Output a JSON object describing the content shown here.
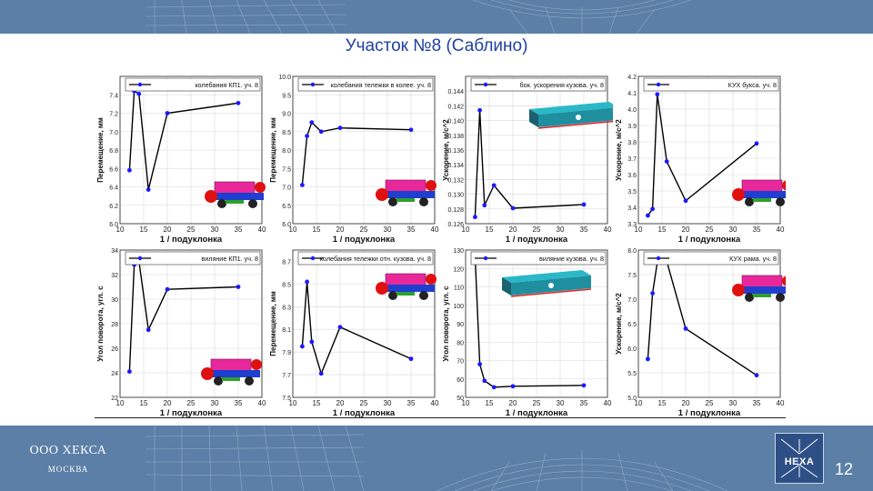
{
  "slide": {
    "title": "Участок №8 (Саблино)",
    "company": "ООО ХЕКСА",
    "city": "МОСКВА",
    "logo_text": "HEXA",
    "page_number": "12"
  },
  "colors": {
    "band": "#5b7fa6",
    "title": "#1f3fa0",
    "series_line": "#000000",
    "series_marker": "#1a1aff"
  },
  "chart_data": [
    {
      "type": "line",
      "xlabel": "1 / подуклонка",
      "ylabel": "Перемещение, мм",
      "xlim": [
        10,
        40
      ],
      "xticks": [
        10,
        15,
        20,
        25,
        30,
        35,
        40
      ],
      "ylim": [
        6.0,
        7.6
      ],
      "yticks": [
        "6.0",
        "6.2",
        "6.4",
        "6.6",
        "6.8",
        "7.0",
        "7.2",
        "7.4"
      ],
      "grid": true,
      "legend": "top-right",
      "illustration": "bogie",
      "series": [
        {
          "name": "колебания КП1. уч. 8",
          "x": [
            12,
            13,
            14,
            16,
            20,
            35
          ],
          "y": [
            6.58,
            7.44,
            7.41,
            6.37,
            7.2,
            7.31
          ]
        }
      ]
    },
    {
      "type": "line",
      "xlabel": "1 / подуклонка",
      "ylabel": "Перемещение, мм",
      "xlim": [
        10,
        40
      ],
      "xticks": [
        10,
        15,
        20,
        25,
        30,
        35,
        40
      ],
      "ylim": [
        6.0,
        10.0
      ],
      "yticks": [
        "6.0",
        "6.5",
        "7.0",
        "7.5",
        "8.0",
        "8.5",
        "9.0",
        "9.5",
        "10.0"
      ],
      "grid": true,
      "legend": "top-right",
      "illustration": "bogie",
      "series": [
        {
          "name": "колебания тележки в колее. уч. 8",
          "x": [
            12,
            13,
            14,
            16,
            20,
            35
          ],
          "y": [
            7.05,
            8.38,
            8.75,
            8.5,
            8.6,
            8.55
          ]
        }
      ]
    },
    {
      "type": "line",
      "xlabel": "1 / подуклонка",
      "ylabel": "Ускорение, м/с^2",
      "xlim": [
        10,
        40
      ],
      "xticks": [
        10,
        15,
        20,
        25,
        30,
        35,
        40
      ],
      "ylim": [
        0.126,
        0.146
      ],
      "yticks": [
        "0.126",
        "0.128",
        "0.130",
        "0.132",
        "0.134",
        "0.136",
        "0.138",
        "0.140",
        "0.142",
        "0.144"
      ],
      "grid": true,
      "legend": "top-right",
      "illustration": "carbody",
      "series": [
        {
          "name": "бок. ускорения кузова. уч. 8",
          "x": [
            12,
            13,
            14,
            16,
            20,
            35
          ],
          "y": [
            0.1269,
            0.1414,
            0.1285,
            0.1312,
            0.1281,
            0.1286
          ]
        }
      ]
    },
    {
      "type": "line",
      "xlabel": "1 / подуклонка",
      "ylabel": "Ускорение, м/с^2",
      "xlim": [
        10,
        40
      ],
      "xticks": [
        10,
        15,
        20,
        25,
        30,
        35,
        40
      ],
      "ylim": [
        3.3,
        4.2
      ],
      "yticks": [
        "3.3",
        "3.4",
        "3.5",
        "3.6",
        "3.7",
        "3.8",
        "3.9",
        "4.0",
        "4.1",
        "4.2"
      ],
      "grid": true,
      "legend": "top-right",
      "illustration": "bogie",
      "series": [
        {
          "name": "КУХ букса. уч. 8",
          "x": [
            12,
            13,
            14,
            16,
            20,
            35
          ],
          "y": [
            3.35,
            3.39,
            4.09,
            3.68,
            3.44,
            3.79
          ]
        }
      ]
    },
    {
      "type": "line",
      "xlabel": "1 / подуклонка",
      "ylabel": "Угол поворота, угл. с",
      "xlim": [
        10,
        40
      ],
      "xticks": [
        10,
        15,
        20,
        25,
        30,
        35,
        40
      ],
      "ylim": [
        22,
        34
      ],
      "yticks": [
        "22",
        "24",
        "26",
        "28",
        "30",
        "32",
        "34"
      ],
      "grid": true,
      "legend": "top-right",
      "illustration": "bogie",
      "series": [
        {
          "name": "виляние КП1. уч. 8",
          "x": [
            12,
            13,
            14,
            16,
            20,
            35
          ],
          "y": [
            24.1,
            32.8,
            33.1,
            27.5,
            30.8,
            31.0
          ]
        }
      ]
    },
    {
      "type": "line",
      "xlabel": "1 / подуклонка",
      "ylabel": "Перемещение, мм",
      "xlim": [
        10,
        40
      ],
      "xticks": [
        10,
        15,
        20,
        25,
        30,
        35,
        40
      ],
      "ylim": [
        7.5,
        8.8
      ],
      "yticks": [
        "7.5",
        "7.7",
        "7.9",
        "8.1",
        "8.3",
        "8.5",
        "8.7"
      ],
      "grid": true,
      "legend": "top-right",
      "illustration": "bogie",
      "series": [
        {
          "name": "колебания тележки отн. кузова. уч. 8",
          "x": [
            12,
            13,
            14,
            16,
            20,
            35
          ],
          "y": [
            7.95,
            8.52,
            7.99,
            7.71,
            8.12,
            7.84
          ]
        }
      ]
    },
    {
      "type": "line",
      "xlabel": "1 / подуклонка",
      "ylabel": "Угол поворота, угл. с",
      "xlim": [
        10,
        40
      ],
      "xticks": [
        10,
        15,
        20,
        25,
        30,
        35,
        40
      ],
      "ylim": [
        50,
        130
      ],
      "yticks": [
        "50",
        "60",
        "70",
        "80",
        "90",
        "100",
        "110",
        "120",
        "130"
      ],
      "grid": true,
      "legend": "top-right",
      "illustration": "carbody",
      "series": [
        {
          "name": "виляние кузова. уч. 8",
          "x": [
            12,
            13,
            14,
            16,
            20,
            35
          ],
          "y": [
            127,
            68,
            59,
            55.5,
            56,
            56.5
          ]
        }
      ]
    },
    {
      "type": "line",
      "xlabel": "1 / подуклонка",
      "ylabel": "Ускорение, м/с^2",
      "xlim": [
        10,
        40
      ],
      "xticks": [
        10,
        15,
        20,
        25,
        30,
        35,
        40
      ],
      "ylim": [
        5.0,
        8.0
      ],
      "yticks": [
        "5.0",
        "5.5",
        "6.0",
        "6.5",
        "7.0",
        "7.5",
        "8.0"
      ],
      "grid": true,
      "legend": "top-right",
      "illustration": "bogie",
      "series": [
        {
          "name": "КУХ рама. уч. 8",
          "x": [
            12,
            13,
            14,
            16,
            20,
            35
          ],
          "y": [
            5.78,
            7.12,
            7.75,
            7.77,
            6.4,
            5.45
          ]
        }
      ]
    }
  ]
}
